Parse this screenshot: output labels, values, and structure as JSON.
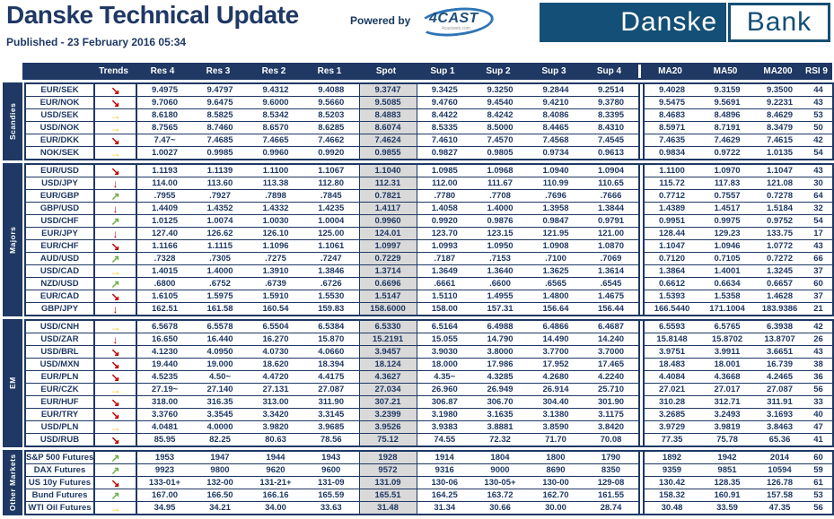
{
  "header": {
    "title": "Danske Technical Update",
    "published": "Published - 23 February 2016 05:34",
    "powered_by": "Powered by",
    "fourcast_logo": "4CAST",
    "fourcast_sub": "4castweb.com",
    "bank_logo": {
      "part1": "Danske",
      "part2": "Bank"
    }
  },
  "colors": {
    "navy": "#1f3864",
    "spot_bg": "#d9d9d9",
    "bank_blue": "#134f76",
    "trend_down": "#c00000",
    "trend_sideways": "#ffc000",
    "trend_up": "#70ad47"
  },
  "table": {
    "columns": [
      "Trends",
      "Res 4",
      "Res 3",
      "Res 2",
      "Res 1",
      "Spot",
      "Sup 1",
      "Sup 2",
      "Sup 3",
      "Sup 4",
      "MA20",
      "MA50",
      "MA200",
      "RSI 9"
    ],
    "trend_glyphs": {
      "down-right": "↘",
      "down": "↓",
      "right": "→",
      "up-right": "↗"
    },
    "trend_classes": {
      "down-right": "t-red",
      "down": "t-red",
      "right": "t-yellow",
      "up-right": "t-green"
    },
    "sections": [
      {
        "label": "Scandies",
        "rows": [
          {
            "name": "EUR/SEK",
            "trend": "down-right",
            "values": [
              "9.4975",
              "9.4797",
              "9.4312",
              "9.4088",
              "9.3747",
              "9.3425",
              "9.3250",
              "9.2844",
              "9.2514",
              "9.4028",
              "9.3159",
              "9.3500",
              "44"
            ]
          },
          {
            "name": "EUR/NOK",
            "trend": "down-right",
            "values": [
              "9.7060",
              "9.6475",
              "9.6000",
              "9.5660",
              "9.5085",
              "9.4760",
              "9.4540",
              "9.4210",
              "9.3780",
              "9.5475",
              "9.5691",
              "9.2231",
              "43"
            ]
          },
          {
            "name": "USD/SEK",
            "trend": "right",
            "values": [
              "8.6180",
              "8.5825",
              "8.5342",
              "8.5203",
              "8.4883",
              "8.4422",
              "8.4242",
              "8.4086",
              "8.3395",
              "8.4683",
              "8.4896",
              "8.4629",
              "53"
            ]
          },
          {
            "name": "USD/NOK",
            "trend": "right",
            "values": [
              "8.7565",
              "8.7460",
              "8.6570",
              "8.6285",
              "8.6074",
              "8.5335",
              "8.5000",
              "8.4465",
              "8.4310",
              "8.5971",
              "8.7191",
              "8.3479",
              "50"
            ]
          },
          {
            "name": "EUR/DKK",
            "trend": "down-right",
            "values": [
              "7.47~",
              "7.4685",
              "7.4665",
              "7.4662",
              "7.4624",
              "7.4610",
              "7.4570",
              "7.4568",
              "7.4545",
              "7.4635",
              "7.4629",
              "7.4615",
              "42"
            ]
          },
          {
            "name": "NOK/SEK",
            "trend": "right",
            "values": [
              "1.0027",
              "0.9985",
              "0.9960",
              "0.9920",
              "0.9855",
              "0.9827",
              "0.9805",
              "0.9734",
              "0.9613",
              "0.9834",
              "0.9722",
              "1.0135",
              "54"
            ]
          }
        ]
      },
      {
        "label": "Majors",
        "rows": [
          {
            "name": "EUR/USD",
            "trend": "down-right",
            "values": [
              "1.1193",
              "1.1139",
              "1.1100",
              "1.1067",
              "1.1040",
              "1.0985",
              "1.0968",
              "1.0940",
              "1.0904",
              "1.1100",
              "1.0970",
              "1.1047",
              "43"
            ]
          },
          {
            "name": "USD/JPY",
            "trend": "down",
            "values": [
              "114.00",
              "113.60",
              "113.38",
              "112.80",
              "112.31",
              "112.00",
              "111.67",
              "110.99",
              "110.65",
              "115.72",
              "117.83",
              "121.08",
              "30"
            ]
          },
          {
            "name": "EUR/GBP",
            "trend": "up-right",
            "values": [
              ".7955",
              ".7927",
              ".7898",
              ".7845",
              "0.7821",
              ".7780",
              ".7708",
              ".7696",
              ".7666",
              "0.7712",
              "0.7557",
              "0.7278",
              "64"
            ]
          },
          {
            "name": "GBP/USD",
            "trend": "down",
            "values": [
              "1.4409",
              "1.4352",
              "1.4332",
              "1.4235",
              "1.4117",
              "1.4058",
              "1.4000",
              "1.3958",
              "1.3844",
              "1.4389",
              "1.4517",
              "1.5184",
              "32"
            ]
          },
          {
            "name": "USD/CHF",
            "trend": "up-right",
            "values": [
              "1.0125",
              "1.0074",
              "1.0030",
              "1.0004",
              "0.9960",
              "0.9920",
              "0.9876",
              "0.9847",
              "0.9791",
              "0.9951",
              "0.9975",
              "0.9752",
              "54"
            ]
          },
          {
            "name": "EUR/JPY",
            "trend": "down",
            "values": [
              "127.40",
              "126.62",
              "126.10",
              "125.00",
              "124.01",
              "123.70",
              "123.15",
              "121.95",
              "121.00",
              "128.44",
              "129.23",
              "133.75",
              "17"
            ]
          },
          {
            "name": "EUR/CHF",
            "trend": "down-right",
            "values": [
              "1.1166",
              "1.1115",
              "1.1096",
              "1.1061",
              "1.0997",
              "1.0993",
              "1.0950",
              "1.0908",
              "1.0870",
              "1.1047",
              "1.0946",
              "1.0772",
              "43"
            ]
          },
          {
            "name": "AUD/USD",
            "trend": "up-right",
            "values": [
              ".7328",
              ".7305",
              ".7275",
              ".7247",
              "0.7229",
              ".7187",
              ".7153",
              ".7100",
              ".7069",
              "0.7120",
              "0.7105",
              "0.7272",
              "66"
            ]
          },
          {
            "name": "USD/CAD",
            "trend": "right",
            "values": [
              "1.4015",
              "1.4000",
              "1.3910",
              "1.3846",
              "1.3714",
              "1.3649",
              "1.3640",
              "1.3625",
              "1.3614",
              "1.3864",
              "1.4001",
              "1.3245",
              "37"
            ]
          },
          {
            "name": "NZD/USD",
            "trend": "up-right",
            "values": [
              ".6800",
              ".6752",
              ".6739",
              ".6726",
              "0.6696",
              ".6661",
              ".6600",
              ".6565",
              ".6545",
              "0.6612",
              "0.6634",
              "0.6657",
              "60"
            ]
          },
          {
            "name": "EUR/CAD",
            "trend": "down-right",
            "values": [
              "1.6105",
              "1.5975",
              "1.5910",
              "1.5530",
              "1.5147",
              "1.5110",
              "1.4955",
              "1.4800",
              "1.4675",
              "1.5393",
              "1.5358",
              "1.4628",
              "37"
            ]
          },
          {
            "name": "GBP/JPY",
            "trend": "down",
            "values": [
              "162.51",
              "161.58",
              "160.54",
              "159.83",
              "158.6000",
              "158.00",
              "157.31",
              "156.64",
              "156.44",
              "166.5440",
              "171.1004",
              "183.9386",
              "21"
            ]
          }
        ]
      },
      {
        "label": "EM",
        "rows": [
          {
            "name": "USD/CNH",
            "trend": "right",
            "values": [
              "6.5678",
              "6.5578",
              "6.5504",
              "6.5384",
              "6.5330",
              "6.5164",
              "6.4988",
              "6.4866",
              "6.4687",
              "6.5593",
              "6.5765",
              "6.3938",
              "42"
            ]
          },
          {
            "name": "USD/ZAR",
            "trend": "down",
            "values": [
              "16.650",
              "16.440",
              "16.270",
              "15.870",
              "15.2191",
              "15.055",
              "14.790",
              "14.490",
              "14.240",
              "15.8148",
              "15.8702",
              "13.8707",
              "26"
            ]
          },
          {
            "name": "USD/BRL",
            "trend": "down-right",
            "values": [
              "4.1230",
              "4.0950",
              "4.0730",
              "4.0660",
              "3.9457",
              "3.9030",
              "3.8000",
              "3.7700",
              "3.7000",
              "3.9751",
              "3.9911",
              "3.6651",
              "43"
            ]
          },
          {
            "name": "USD/MXN",
            "trend": "down-right",
            "values": [
              "19.440",
              "19.000",
              "18.620",
              "18.394",
              "18.124",
              "18.000",
              "17.986",
              "17.952",
              "17.465",
              "18.483",
              "18.001",
              "16.739",
              "38"
            ]
          },
          {
            "name": "EUR/PLN",
            "trend": "down-right",
            "values": [
              "4.5235",
              "4.50~",
              "4.4720",
              "4.4175",
              "4.3627",
              "4.35~",
              "4.3285",
              "4.2680",
              "4.2240",
              "4.4084",
              "4.3668",
              "4.2465",
              "36"
            ]
          },
          {
            "name": "EUR/CZK",
            "trend": "right",
            "values": [
              "27.19~",
              "27.140",
              "27.131",
              "27.087",
              "27.034",
              "26.960",
              "26.949",
              "26.914",
              "25.710",
              "27.021",
              "27.017",
              "27.087",
              "56"
            ]
          },
          {
            "name": "EUR/HUF",
            "trend": "down-right",
            "values": [
              "318.00",
              "316.35",
              "313.00",
              "311.90",
              "307.21",
              "306.87",
              "306.70",
              "304.40",
              "301.90",
              "310.28",
              "312.71",
              "311.91",
              "33"
            ]
          },
          {
            "name": "EUR/TRY",
            "trend": "down-right",
            "values": [
              "3.3760",
              "3.3545",
              "3.3420",
              "3.3145",
              "3.2399",
              "3.1980",
              "3.1635",
              "3.1380",
              "3.1175",
              "3.2685",
              "3.2493",
              "3.1693",
              "40"
            ]
          },
          {
            "name": "USD/PLN",
            "trend": "right",
            "values": [
              "4.0481",
              "4.0000",
              "3.9820",
              "3.9685",
              "3.9526",
              "3.9383",
              "3.8881",
              "3.8590",
              "3.8420",
              "3.9729",
              "3.9819",
              "3.8463",
              "47"
            ]
          },
          {
            "name": "USD/RUB",
            "trend": "down-right",
            "values": [
              "85.95",
              "82.25",
              "80.63",
              "78.56",
              "75.12",
              "74.55",
              "72.32",
              "71.70",
              "70.08",
              "77.35",
              "75.78",
              "65.36",
              "41"
            ]
          }
        ]
      },
      {
        "label": "Other Markets",
        "rows": [
          {
            "name": "S&P 500 Futures",
            "trend": "up-right",
            "values": [
              "1953",
              "1947",
              "1944",
              "1943",
              "1928",
              "1914",
              "1804",
              "1800",
              "1790",
              "1892",
              "1942",
              "2014",
              "60"
            ]
          },
          {
            "name": "DAX Futures",
            "trend": "up-right",
            "values": [
              "9923",
              "9800",
              "9620",
              "9600",
              "9572",
              "9316",
              "9000",
              "8690",
              "8350",
              "9359",
              "9851",
              "10594",
              "59"
            ]
          },
          {
            "name": "US 10y Futures",
            "trend": "down-right",
            "values": [
              "133-01+",
              "132-00",
              "131-21+",
              "131-09",
              "131.09",
              "130-06",
              "130-05+",
              "130-00",
              "129-08",
              "130.42",
              "128.35",
              "126.78",
              "61"
            ]
          },
          {
            "name": "Bund Futures",
            "trend": "up-right",
            "values": [
              "167.00",
              "166.50",
              "166.16",
              "165.59",
              "165.51",
              "164.25",
              "163.72",
              "162.70",
              "161.55",
              "158.32",
              "160.91",
              "157.58",
              "53"
            ]
          },
          {
            "name": "WTI Oil Futures",
            "trend": "right",
            "values": [
              "34.95",
              "34.21",
              "34.00",
              "33.63",
              "31.48",
              "31.34",
              "30.66",
              "30.00",
              "28.74",
              "30.48",
              "33.59",
              "47.35",
              "56"
            ]
          }
        ]
      }
    ]
  }
}
